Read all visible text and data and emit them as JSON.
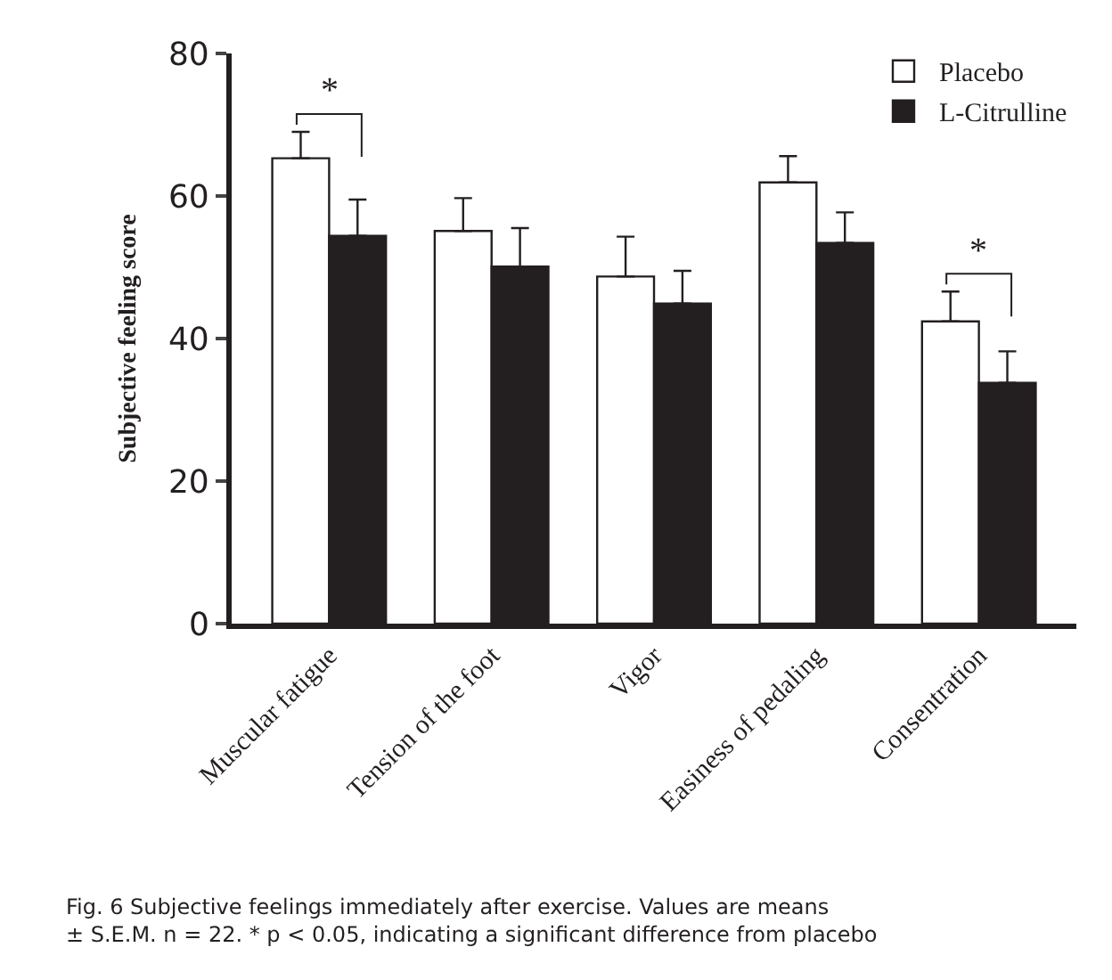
{
  "chart_data": {
    "type": "bar",
    "ylabel": "Subjective feeling score",
    "categories": [
      "Muscular fatigue",
      "Tension of the foot",
      "Vigor",
      "Easiness of pedaling",
      "Consentration"
    ],
    "series": [
      {
        "name": "Placebo",
        "color": "#ffffff",
        "values": [
          65.3,
          55.1,
          48.7,
          61.9,
          42.4
        ],
        "errors": [
          [
            65.3,
            69.0
          ],
          [
            55.1,
            59.7
          ],
          [
            48.7,
            54.3
          ],
          [
            61.9,
            65.6
          ],
          [
            42.4,
            46.6
          ]
        ]
      },
      {
        "name": "L-Citrulline",
        "color": "#231f20",
        "values": [
          54.4,
          50.1,
          44.9,
          53.4,
          33.8
        ],
        "errors": [
          [
            54.4,
            59.5
          ],
          [
            50.1,
            55.5
          ],
          [
            44.9,
            49.5
          ],
          [
            53.4,
            57.7
          ],
          [
            33.8,
            38.2
          ]
        ]
      }
    ],
    "ylim": [
      0,
      80
    ],
    "yticks": [
      0,
      20,
      40,
      60,
      80
    ],
    "grid": false,
    "legend": "top right",
    "annotations": [
      "*",
      "*",
      "Fig. 6 Subjective feelings immediately after exercise. Values are means ± S.E.M. n = 22. * p < 0.05, indicating a significant difference from placebo"
    ]
  }
}
